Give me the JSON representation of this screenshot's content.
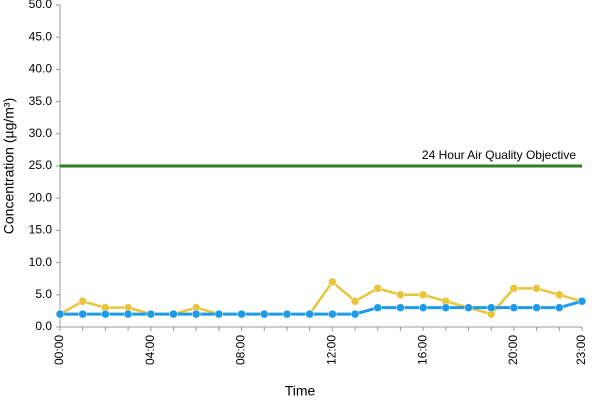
{
  "chart_data": {
    "type": "line",
    "x_label": "Time",
    "y_label": "Concentration (µg/m³)",
    "categories": [
      "00:00",
      null,
      null,
      null,
      "04:00",
      null,
      null,
      null,
      "08:00",
      null,
      null,
      null,
      "12:00",
      null,
      null,
      null,
      "16:00",
      null,
      null,
      null,
      "20:00",
      null,
      null,
      "23:00"
    ],
    "series": [
      {
        "color": "#e8c53a",
        "values": [
          2,
          4,
          3,
          3,
          2,
          2,
          3,
          2,
          2,
          2,
          2,
          2,
          7,
          4,
          6,
          5,
          5,
          4,
          3,
          2,
          6,
          6,
          5,
          4
        ]
      },
      {
        "color": "#1e9be8",
        "values": [
          2,
          2,
          2,
          2,
          2,
          2,
          2,
          2,
          2,
          2,
          2,
          2,
          2,
          2,
          3,
          3,
          3,
          3,
          3,
          3,
          3,
          3,
          3,
          4
        ]
      }
    ],
    "objective": {
      "text": "24 Hour Air Quality Objective",
      "value": 25,
      "color": "#2e7d1e"
    },
    "ylim": [
      0,
      50
    ],
    "yticks": [
      {
        "value": 0,
        "label": "0.0"
      },
      {
        "value": 5,
        "label": "5.0"
      },
      {
        "value": 10,
        "label": "10.0"
      },
      {
        "value": 15,
        "label": "15.0"
      },
      {
        "value": 20,
        "label": "20.0"
      },
      {
        "value": 25,
        "label": "25.0"
      },
      {
        "value": 30,
        "label": "30.0"
      },
      {
        "value": 35,
        "label": "35.0"
      },
      {
        "value": 40,
        "label": "40.0"
      },
      {
        "value": 45,
        "label": "45.0"
      },
      {
        "value": 50,
        "label": "50.0"
      }
    ]
  }
}
